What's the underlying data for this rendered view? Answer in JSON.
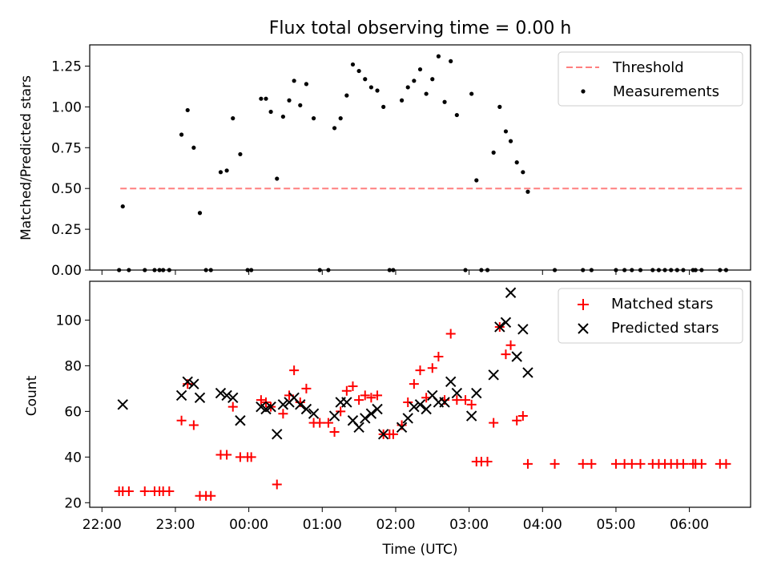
{
  "title": "Flux total observing time = 0.00 h",
  "colors": {
    "threshold": "#ff7f7f",
    "measurements": "#000000",
    "matched": "#ff0000",
    "predicted": "#000000",
    "axes": "#000000",
    "legend_border": "#cccccc"
  },
  "chart_data": [
    {
      "type": "scatter",
      "title": "Flux total observing time = 0.00 h",
      "xlabel": "",
      "ylabel": "Matched/Predicted stars",
      "xlim": [
        "21:50",
        "06:50"
      ],
      "ylim": [
        0,
        1.38
      ],
      "x_tick_minutes": [
        0,
        60,
        120,
        180,
        240,
        300,
        360,
        420,
        480
      ],
      "yticks": [
        0,
        0.25,
        0.5,
        0.75,
        1.0,
        1.25
      ],
      "ytick_labels": [
        "0.00",
        "0.25",
        "0.50",
        "0.75",
        "1.00",
        "1.25"
      ],
      "grid": false,
      "legend": "top-right",
      "series": [
        {
          "name": "Threshold",
          "kind": "dashed-line",
          "points": [
            [
              "22:15",
              0.5
            ],
            [
              "06:45",
              0.5
            ]
          ]
        },
        {
          "name": "Measurements",
          "kind": "dot",
          "points": [
            [
              "22:14",
              0
            ],
            [
              "22:17",
              0.39
            ],
            [
              "22:22",
              0
            ],
            [
              "22:35",
              0
            ],
            [
              "22:43",
              0
            ],
            [
              "22:47",
              0
            ],
            [
              "22:50",
              0
            ],
            [
              "22:55",
              0
            ],
            [
              "23:05",
              0.83
            ],
            [
              "23:10",
              0.98
            ],
            [
              "23:15",
              0.75
            ],
            [
              "23:20",
              0.35
            ],
            [
              "23:25",
              0
            ],
            [
              "23:29",
              0
            ],
            [
              "23:37",
              0.6
            ],
            [
              "23:42",
              0.61
            ],
            [
              "23:47",
              0.93
            ],
            [
              "23:53",
              0.71
            ],
            [
              "23:59",
              0
            ],
            [
              "24:02",
              0
            ],
            [
              "24:10",
              1.05
            ],
            [
              "24:14",
              1.05
            ],
            [
              "24:18",
              0.97
            ],
            [
              "24:23",
              0.56
            ],
            [
              "24:28",
              0.94
            ],
            [
              "24:33",
              1.04
            ],
            [
              "24:37",
              1.16
            ],
            [
              "24:42",
              1.01
            ],
            [
              "24:47",
              1.14
            ],
            [
              "24:53",
              0.93
            ],
            [
              "24:58",
              0
            ],
            [
              "25:05",
              0
            ],
            [
              "25:10",
              0.87
            ],
            [
              "25:15",
              0.93
            ],
            [
              "25:20",
              1.07
            ],
            [
              "25:25",
              1.26
            ],
            [
              "25:30",
              1.22
            ],
            [
              "25:35",
              1.17
            ],
            [
              "25:40",
              1.12
            ],
            [
              "25:45",
              1.1
            ],
            [
              "25:50",
              1.0
            ],
            [
              "25:55",
              0
            ],
            [
              "25:58",
              0
            ],
            [
              "26:05",
              1.04
            ],
            [
              "26:10",
              1.12
            ],
            [
              "26:15",
              1.16
            ],
            [
              "26:20",
              1.23
            ],
            [
              "26:25",
              1.08
            ],
            [
              "26:30",
              1.17
            ],
            [
              "26:35",
              1.31
            ],
            [
              "26:40",
              1.03
            ],
            [
              "26:45",
              1.28
            ],
            [
              "26:50",
              0.95
            ],
            [
              "26:57",
              0
            ],
            [
              "27:02",
              1.08
            ],
            [
              "27:06",
              0.55
            ],
            [
              "27:10",
              0
            ],
            [
              "27:15",
              0
            ],
            [
              "27:20",
              0.72
            ],
            [
              "27:25",
              1.0
            ],
            [
              "27:30",
              0.85
            ],
            [
              "27:34",
              0.79
            ],
            [
              "27:39",
              0.66
            ],
            [
              "27:44",
              0.6
            ],
            [
              "27:48",
              0.48
            ],
            [
              "28:10",
              0
            ],
            [
              "28:33",
              0
            ],
            [
              "28:40",
              0
            ],
            [
              "29:00",
              0
            ],
            [
              "29:07",
              0
            ],
            [
              "29:13",
              0
            ],
            [
              "29:20",
              0
            ],
            [
              "29:30",
              0
            ],
            [
              "29:35",
              0
            ],
            [
              "29:40",
              0
            ],
            [
              "29:45",
              0
            ],
            [
              "29:50",
              0
            ],
            [
              "29:55",
              0
            ],
            [
              "30:03",
              0
            ],
            [
              "30:05",
              0
            ],
            [
              "30:10",
              0
            ],
            [
              "30:25",
              0
            ],
            [
              "30:30",
              0
            ]
          ]
        }
      ]
    },
    {
      "type": "scatter",
      "title": "",
      "xlabel": "Time (UTC)",
      "ylabel": "Count",
      "xlim": [
        "21:50",
        "06:50"
      ],
      "ylim": [
        18,
        117
      ],
      "x_tick_minutes": [
        0,
        60,
        120,
        180,
        240,
        300,
        360,
        420,
        480
      ],
      "x_tick_labels": [
        "22:00",
        "23:00",
        "00:00",
        "01:00",
        "02:00",
        "03:00",
        "04:00",
        "05:00",
        "06:00"
      ],
      "yticks": [
        20,
        40,
        60,
        80,
        100
      ],
      "ytick_labels": [
        "20",
        "40",
        "60",
        "80",
        "100"
      ],
      "grid": false,
      "legend": "top-right",
      "series": [
        {
          "name": "Matched stars",
          "kind": "plus",
          "points": [
            [
              "22:14",
              25
            ],
            [
              "22:17",
              25
            ],
            [
              "22:22",
              25
            ],
            [
              "22:35",
              25
            ],
            [
              "22:43",
              25
            ],
            [
              "22:47",
              25
            ],
            [
              "22:50",
              25
            ],
            [
              "22:55",
              25
            ],
            [
              "23:05",
              56
            ],
            [
              "23:10",
              72
            ],
            [
              "23:15",
              54
            ],
            [
              "23:20",
              23
            ],
            [
              "23:25",
              23
            ],
            [
              "23:29",
              23
            ],
            [
              "23:37",
              41
            ],
            [
              "23:42",
              41
            ],
            [
              "23:47",
              62
            ],
            [
              "23:53",
              40
            ],
            [
              "23:59",
              40
            ],
            [
              "24:02",
              40
            ],
            [
              "24:10",
              65
            ],
            [
              "24:14",
              64
            ],
            [
              "24:18",
              62
            ],
            [
              "24:23",
              28
            ],
            [
              "24:28",
              59
            ],
            [
              "24:33",
              67
            ],
            [
              "24:37",
              78
            ],
            [
              "24:42",
              64
            ],
            [
              "24:47",
              70
            ],
            [
              "24:53",
              55
            ],
            [
              "24:58",
              55
            ],
            [
              "25:05",
              55
            ],
            [
              "25:10",
              51
            ],
            [
              "25:15",
              60
            ],
            [
              "25:20",
              69
            ],
            [
              "25:25",
              71
            ],
            [
              "25:30",
              65
            ],
            [
              "25:35",
              67
            ],
            [
              "25:40",
              66
            ],
            [
              "25:45",
              67
            ],
            [
              "25:50",
              50
            ],
            [
              "25:55",
              50
            ],
            [
              "25:58",
              50
            ],
            [
              "26:05",
              54
            ],
            [
              "26:10",
              64
            ],
            [
              "26:15",
              72
            ],
            [
              "26:20",
              78
            ],
            [
              "26:25",
              66
            ],
            [
              "26:30",
              79
            ],
            [
              "26:35",
              84
            ],
            [
              "26:40",
              65
            ],
            [
              "26:45",
              94
            ],
            [
              "26:50",
              65
            ],
            [
              "26:57",
              65
            ],
            [
              "27:02",
              63
            ],
            [
              "27:06",
              38
            ],
            [
              "27:10",
              38
            ],
            [
              "27:15",
              38
            ],
            [
              "27:20",
              55
            ],
            [
              "27:25",
              97
            ],
            [
              "27:30",
              85
            ],
            [
              "27:34",
              89
            ],
            [
              "27:39",
              56
            ],
            [
              "27:44",
              58
            ],
            [
              "27:48",
              37
            ],
            [
              "28:10",
              37
            ],
            [
              "28:33",
              37
            ],
            [
              "28:40",
              37
            ],
            [
              "29:00",
              37
            ],
            [
              "29:07",
              37
            ],
            [
              "29:13",
              37
            ],
            [
              "29:20",
              37
            ],
            [
              "29:30",
              37
            ],
            [
              "29:35",
              37
            ],
            [
              "29:40",
              37
            ],
            [
              "29:45",
              37
            ],
            [
              "29:50",
              37
            ],
            [
              "29:55",
              37
            ],
            [
              "30:03",
              37
            ],
            [
              "30:05",
              37
            ],
            [
              "30:10",
              37
            ],
            [
              "30:25",
              37
            ],
            [
              "30:30",
              37
            ]
          ]
        },
        {
          "name": "Predicted stars",
          "kind": "x",
          "points": [
            [
              "22:17",
              63
            ],
            [
              "23:05",
              67
            ],
            [
              "23:10",
              73
            ],
            [
              "23:15",
              72
            ],
            [
              "23:20",
              66
            ],
            [
              "23:37",
              68
            ],
            [
              "23:42",
              67
            ],
            [
              "23:47",
              66
            ],
            [
              "23:53",
              56
            ],
            [
              "24:10",
              62
            ],
            [
              "24:14",
              61
            ],
            [
              "24:18",
              62
            ],
            [
              "24:23",
              50
            ],
            [
              "24:28",
              63
            ],
            [
              "24:33",
              64
            ],
            [
              "24:37",
              66
            ],
            [
              "24:42",
              63
            ],
            [
              "24:47",
              61
            ],
            [
              "24:53",
              59
            ],
            [
              "25:10",
              58
            ],
            [
              "25:15",
              64
            ],
            [
              "25:20",
              64
            ],
            [
              "25:25",
              56
            ],
            [
              "25:30",
              53
            ],
            [
              "25:35",
              57
            ],
            [
              "25:40",
              59
            ],
            [
              "25:45",
              61
            ],
            [
              "25:50",
              50
            ],
            [
              "26:05",
              53
            ],
            [
              "26:10",
              57
            ],
            [
              "26:15",
              62
            ],
            [
              "26:20",
              63
            ],
            [
              "26:25",
              61
            ],
            [
              "26:30",
              67
            ],
            [
              "26:35",
              64
            ],
            [
              "26:40",
              64
            ],
            [
              "26:45",
              73
            ],
            [
              "26:50",
              68
            ],
            [
              "27:02",
              58
            ],
            [
              "27:06",
              68
            ],
            [
              "27:20",
              76
            ],
            [
              "27:25",
              97
            ],
            [
              "27:30",
              99
            ],
            [
              "27:34",
              112
            ],
            [
              "27:39",
              84
            ],
            [
              "27:44",
              96
            ],
            [
              "27:48",
              77
            ]
          ]
        }
      ]
    }
  ]
}
